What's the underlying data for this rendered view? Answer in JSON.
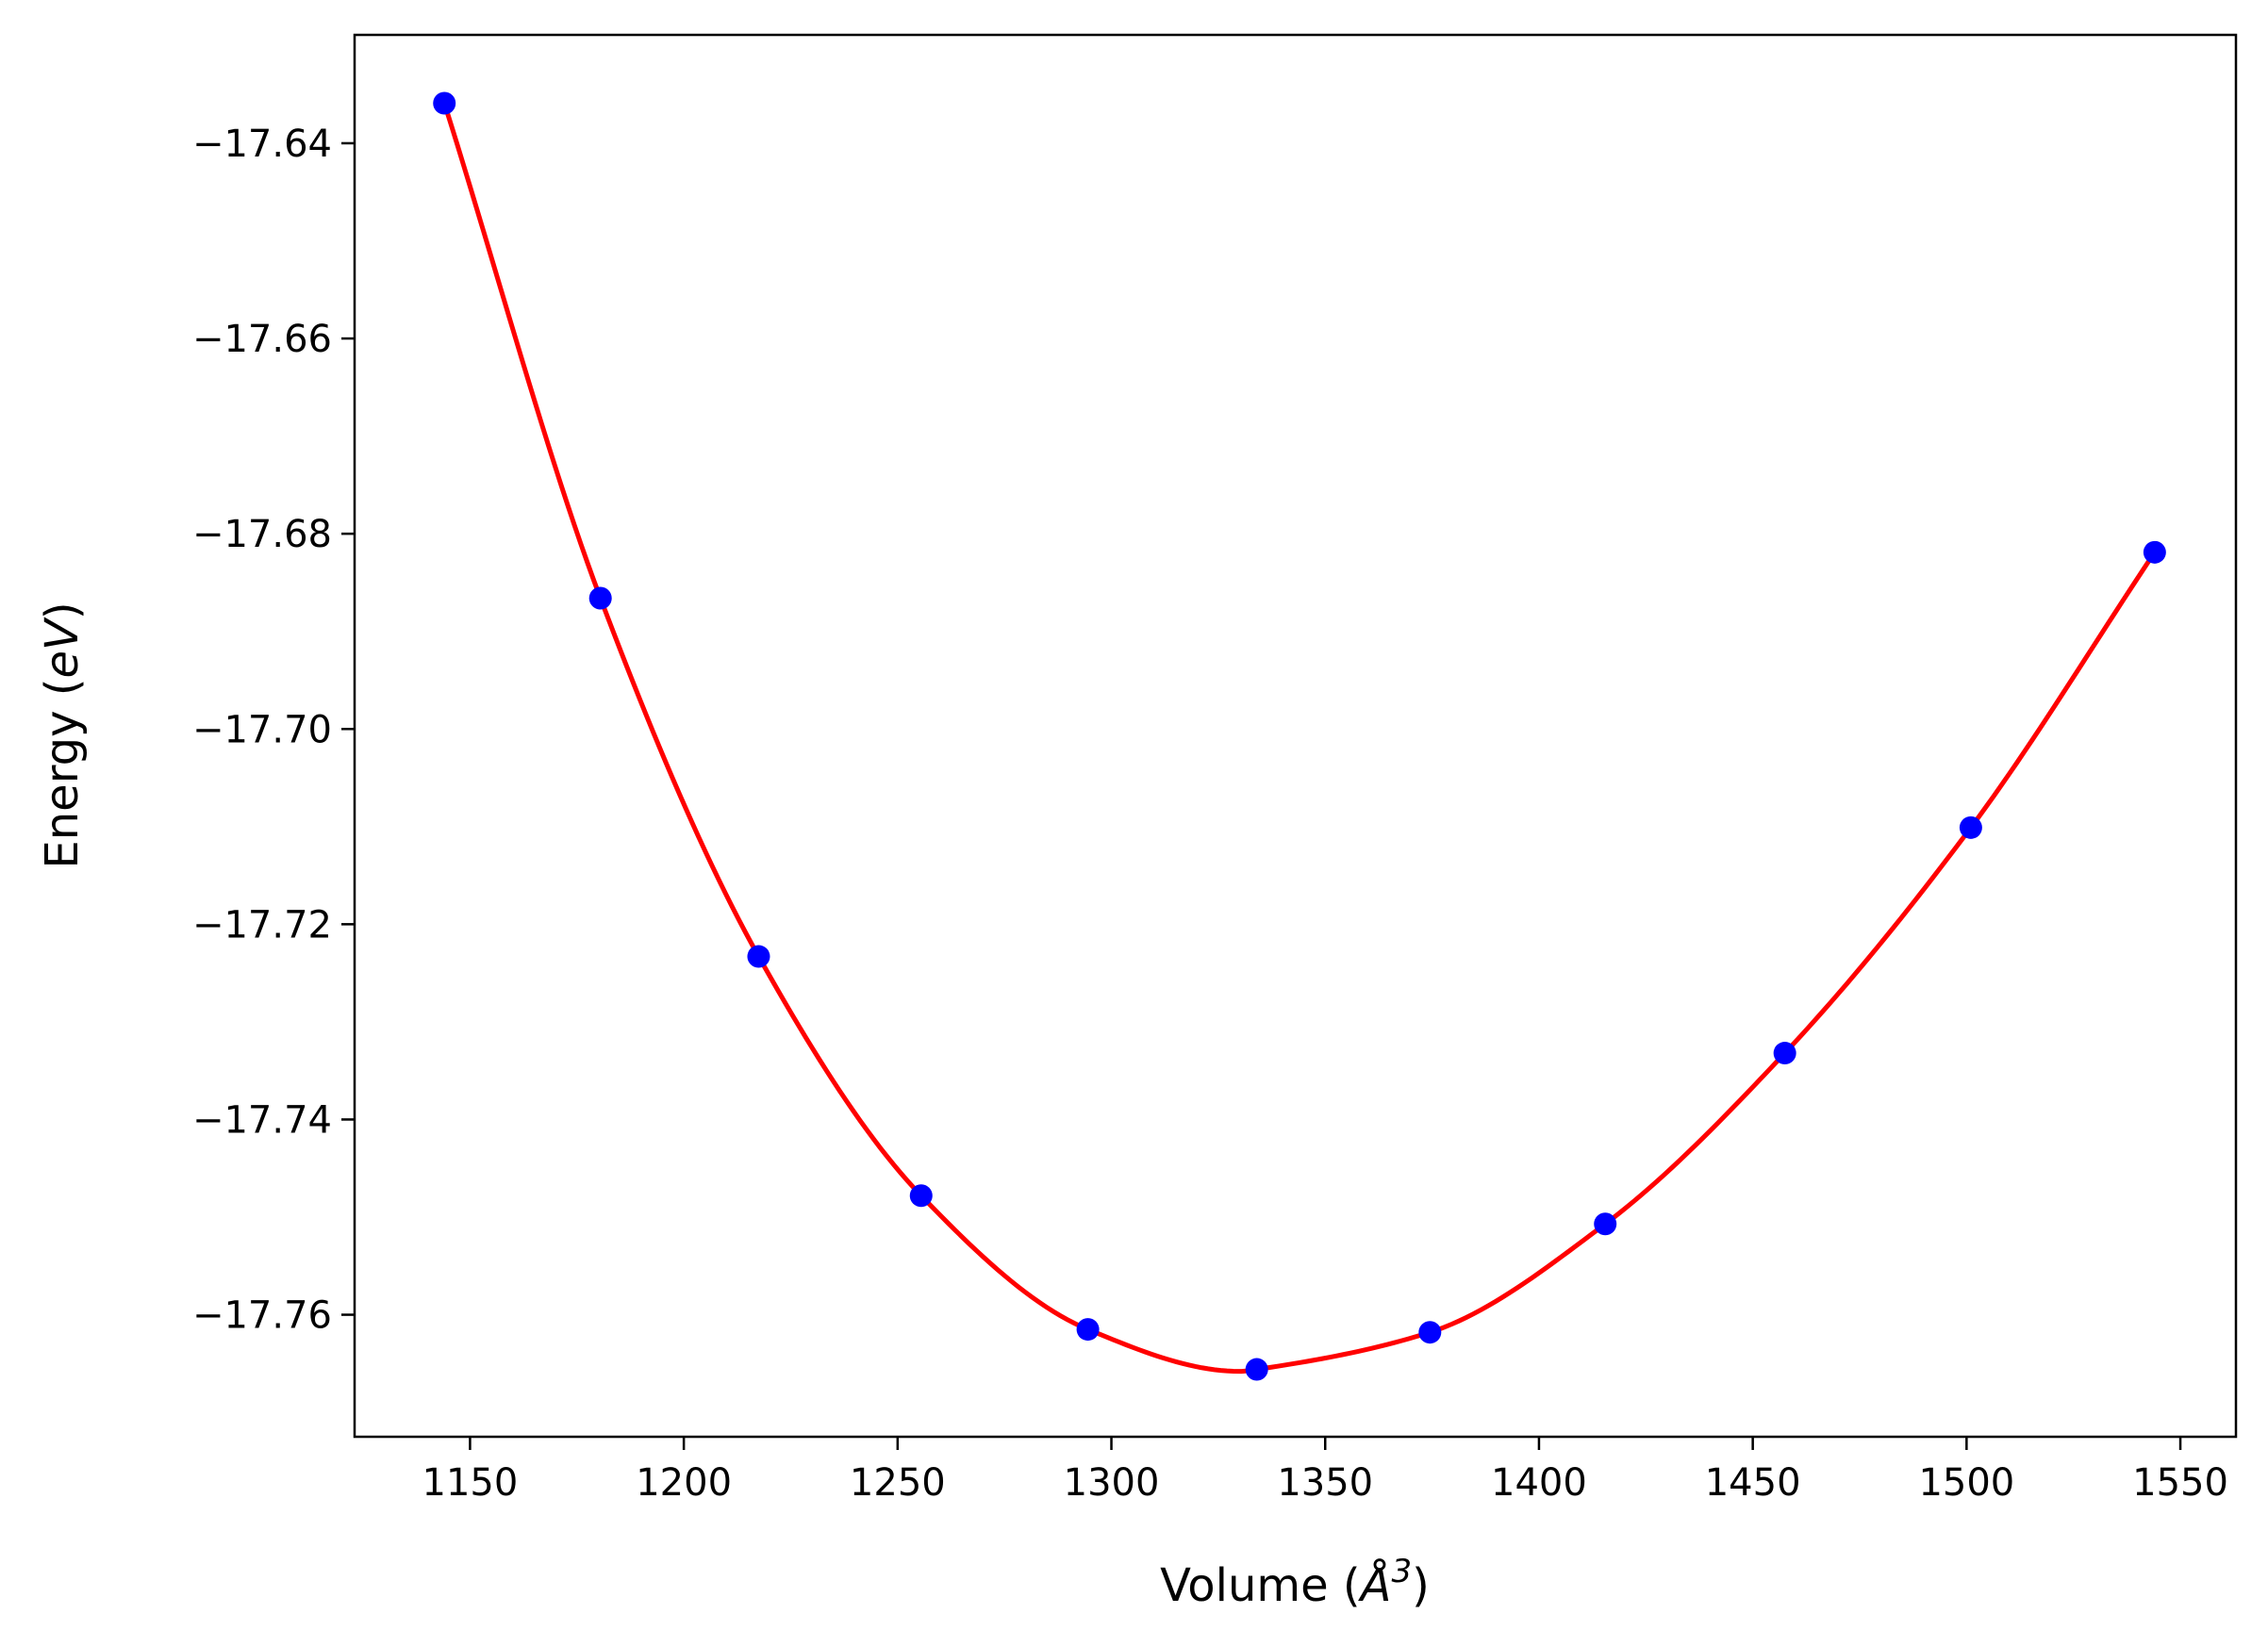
{
  "chart_data": {
    "type": "scatter",
    "xlabel_parts": [
      "Volume (",
      "Å",
      "3",
      ")"
    ],
    "ylabel_parts": [
      "Energy (",
      "eV",
      ")"
    ],
    "xlim": [
      1123,
      1563
    ],
    "ylim": [
      -17.7725,
      -17.6289
    ],
    "xticks": [
      1150,
      1200,
      1250,
      1300,
      1350,
      1400,
      1450,
      1500,
      1550
    ],
    "xtick_labels": [
      "1150",
      "1200",
      "1250",
      "1300",
      "1350",
      "1400",
      "1450",
      "1500",
      "1550"
    ],
    "yticks": [
      -17.64,
      -17.66,
      -17.68,
      -17.7,
      -17.72,
      -17.74,
      -17.76
    ],
    "ytick_labels": [
      "−17.64",
      "−17.66",
      "−17.68",
      "−17.70",
      "−17.72",
      "−17.74",
      "−17.76"
    ],
    "grid": false,
    "series": [
      {
        "kind": "points",
        "color": "#0000ff",
        "x": [
          1144,
          1180.5,
          1217.5,
          1255.5,
          1294.5,
          1334,
          1374.5,
          1415.5,
          1457.5,
          1501,
          1544
        ],
        "y": [
          -17.6359,
          -17.6866,
          -17.7233,
          -17.7478,
          -17.7615,
          -17.7656,
          -17.7618,
          -17.7507,
          -17.7332,
          -17.7101,
          -17.6819
        ]
      },
      {
        "kind": "fit-line",
        "color": "#ff0000",
        "x": [
          1144,
          1180.5,
          1217.5,
          1255.5,
          1294.5,
          1330,
          1334,
          1374.5,
          1415.5,
          1457.5,
          1501,
          1544
        ],
        "y": [
          -17.6359,
          -17.6866,
          -17.7233,
          -17.7478,
          -17.7615,
          -17.7658,
          -17.7656,
          -17.7618,
          -17.7507,
          -17.7332,
          -17.7101,
          -17.6819
        ]
      }
    ]
  }
}
